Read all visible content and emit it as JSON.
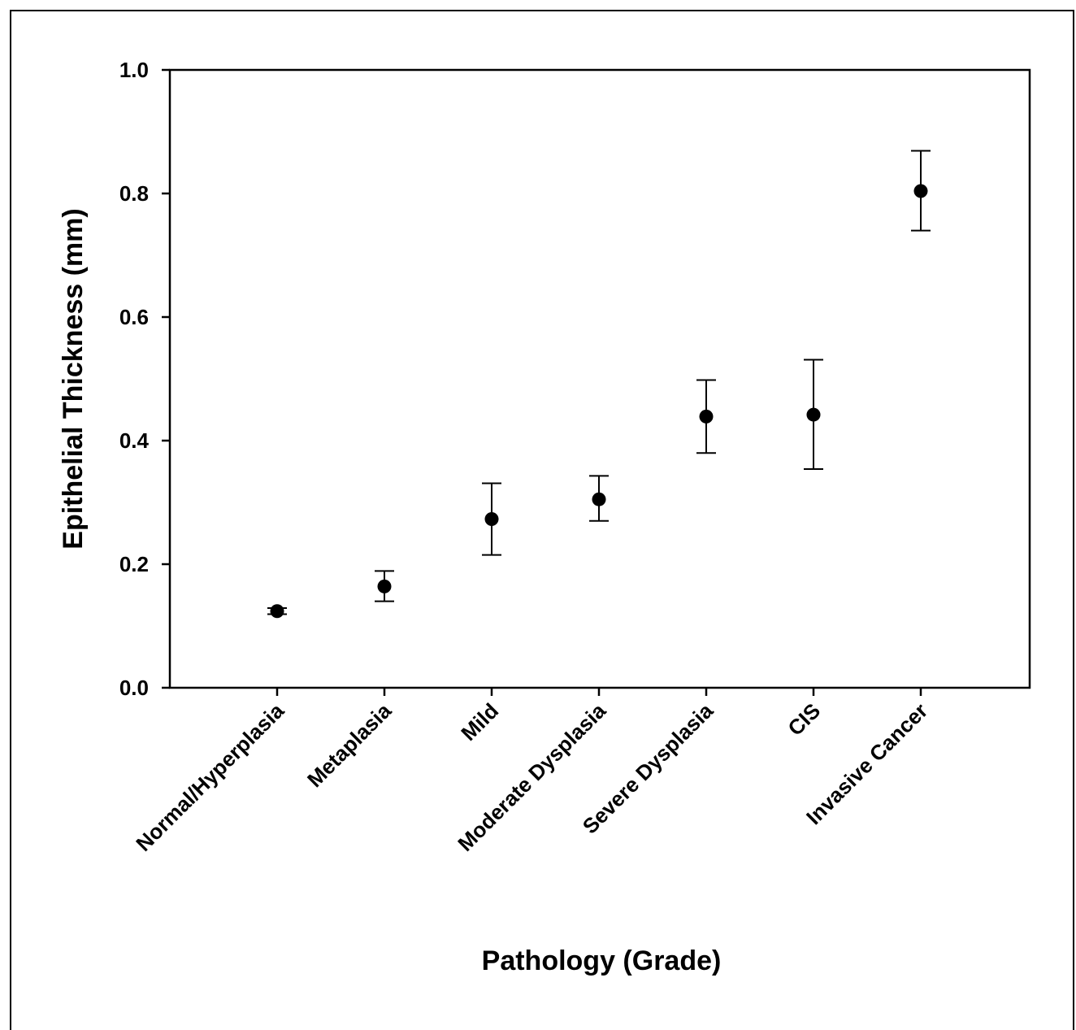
{
  "chart_data": {
    "type": "scatter",
    "title": "",
    "xlabel": "Pathology (Grade)",
    "ylabel": "Epithelial Thickness (mm)",
    "ylim": [
      0.0,
      1.0
    ],
    "yticks": [
      "0.0",
      "0.2",
      "0.4",
      "0.6",
      "0.8",
      "1.0"
    ],
    "grid": false,
    "legend": "none",
    "marker_color": "#000000",
    "categories": [
      "Normal/Hyperplasia",
      "Metaplasia",
      "Mild",
      "Moderate Dysplasia",
      "Severe Dysplasia",
      "CIS",
      "Invasive Cancer"
    ],
    "values": [
      0.124,
      0.164,
      0.273,
      0.305,
      0.439,
      0.442,
      0.804
    ],
    "error_low": [
      0.119,
      0.14,
      0.215,
      0.27,
      0.38,
      0.354,
      0.74
    ],
    "error_high": [
      0.129,
      0.189,
      0.331,
      0.343,
      0.498,
      0.531,
      0.869
    ]
  }
}
